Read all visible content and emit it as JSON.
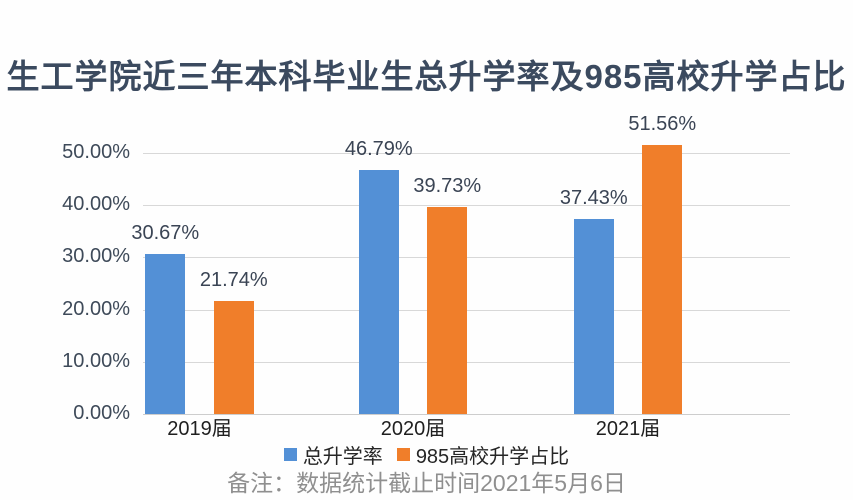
{
  "title": "生工学院近三年本科毕业生总升学率及985高校升学占比",
  "footer_note": "备注：数据统计截止时间2021年5月6日",
  "colors": {
    "title_text": "#3b4a5f",
    "axis_label_text": "#3e4a59",
    "data_label_text": "#3a4454",
    "gridline": "#d8d8d8",
    "series_blue": "#5390d6",
    "series_orange": "#f07e2a",
    "footer_text": "#8f8f8f"
  },
  "chart_data": {
    "type": "bar",
    "title": "生工学院近三年本科毕业生总升学率及985高校升学占比",
    "categories": [
      "2019届",
      "2020届",
      "2021届"
    ],
    "series": [
      {
        "name": "总升学率",
        "color": "#5390d6",
        "values": [
          30.67,
          46.79,
          37.43
        ]
      },
      {
        "name": "985高校升学占比",
        "color": "#f07e2a",
        "values": [
          21.74,
          39.73,
          51.56
        ]
      }
    ],
    "data_labels": [
      [
        "30.67%",
        "46.79%",
        "37.43%"
      ],
      [
        "21.74%",
        "39.73%",
        "51.56%"
      ]
    ],
    "y_ticks": [
      "0.00%",
      "10.00%",
      "20.00%",
      "30.00%",
      "40.00%",
      "50.00%"
    ],
    "ylim": [
      0,
      50
    ],
    "xlabel": "",
    "ylabel": "",
    "grid": true,
    "legend_position": "bottom"
  }
}
